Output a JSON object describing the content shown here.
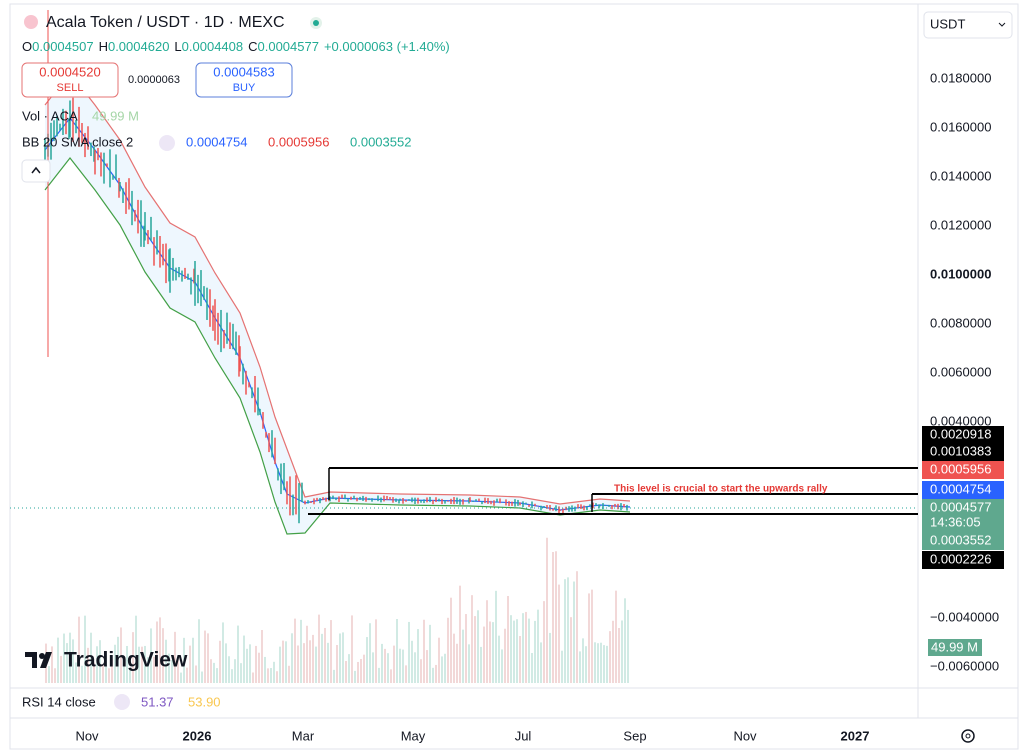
{
  "header": {
    "title": "Acala Token / USDT · 1D · MEXC",
    "ohlc": {
      "o_label": "O",
      "o": "0.0004507",
      "h_label": "H",
      "h": "0.0004620",
      "l_label": "L",
      "l": "0.0004408",
      "c_label": "C",
      "c": "0.0004577",
      "change": "+0.0000063 (+1.40%)"
    }
  },
  "trade": {
    "sell_price": "0.0004520",
    "sell": "SELL",
    "spread": "0.0000063",
    "buy_price": "0.0004583",
    "buy": "BUY"
  },
  "indicators": {
    "vol_label": "Vol · ACA",
    "vol_value": "49.99 M",
    "bb_label": "BB 20 SMA close 2",
    "bb_basis": "0.0004754",
    "bb_upper": "0.0005956",
    "bb_lower": "0.0003552"
  },
  "currency": "USDT",
  "price_axis": [
    "0.0180000",
    "0.0160000",
    "0.0140000",
    "0.0120000",
    "0.0100000",
    "0.0080000",
    "0.0060000",
    "0.0040000",
    "−0.0040000",
    "−0.0060000"
  ],
  "price_tags": [
    "0.0020918",
    "0.0010383",
    "0.0005956",
    "0.0004754",
    "0.0004577",
    "14:36:05",
    "0.0003552",
    "0.0002226"
  ],
  "volume_tag": "49.99 M",
  "annotation": "This level is crucial to start the upwards rally",
  "logo": "TradingView",
  "rsi": {
    "label": "RSI 14 close",
    "value": "51.37",
    "ma": "53.90"
  },
  "time_axis": [
    "Nov",
    "2026",
    "Mar",
    "May",
    "Jul",
    "Sep",
    "Nov",
    "2027"
  ]
}
